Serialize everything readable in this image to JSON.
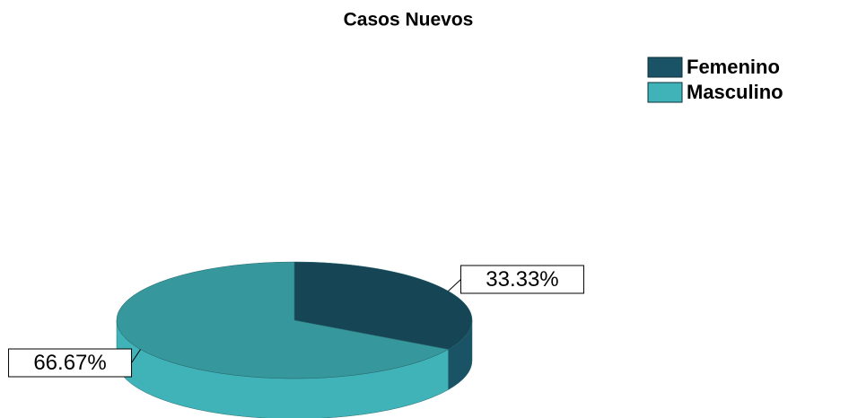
{
  "chart_data": {
    "type": "pie",
    "title": "Casos Nuevos",
    "categories": [
      "Femenino",
      "Masculino"
    ],
    "values": [
      33.33,
      66.67
    ],
    "value_labels": [
      "33.33%",
      "66.67%"
    ],
    "colors": [
      "#1a5266",
      "#40b3b8"
    ],
    "legend": "top-right"
  }
}
